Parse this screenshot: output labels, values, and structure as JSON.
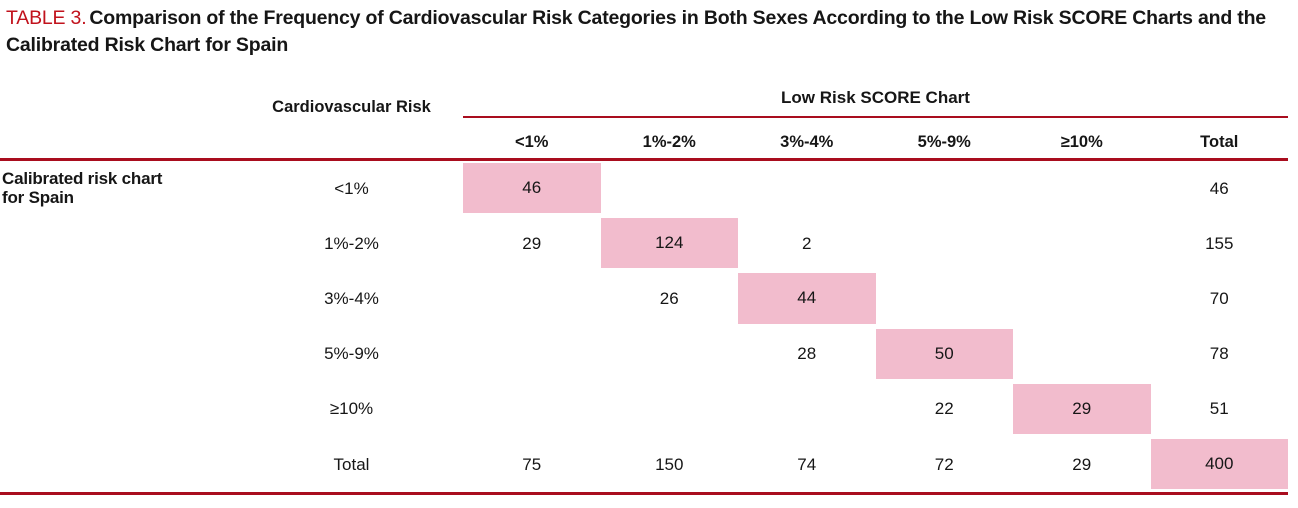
{
  "colors": {
    "title_red": "#c1121c",
    "rule_red": "#a90d1e",
    "highlight_pink": "#f2bccd"
  },
  "title": {
    "label": "TABLE 3.",
    "text": "Comparison of the Frequency of Cardiovascular Risk Categories in Both Sexes According to the Low Risk SCORE Charts and the Calibrated Risk Chart for Spain"
  },
  "table": {
    "stub_header": "Cardiovascular Risk",
    "group_header": "Low Risk SCORE Chart",
    "row_group_label": {
      "line1": "Calibrated risk chart",
      "line2": "for Spain"
    },
    "columns": [
      "<1%",
      "1%-2%",
      "3%-4%",
      "5%-9%",
      "≥10%",
      "Total"
    ],
    "rows": [
      {
        "category": "<1%",
        "values": [
          "46",
          "",
          "",
          "",
          "",
          "46"
        ],
        "highlight_col": 0
      },
      {
        "category": "1%-2%",
        "values": [
          "29",
          "124",
          "2",
          "",
          "",
          "155"
        ],
        "highlight_col": 1
      },
      {
        "category": "3%-4%",
        "values": [
          "",
          "26",
          "44",
          "",
          "",
          "70"
        ],
        "highlight_col": 2
      },
      {
        "category": "5%-9%",
        "values": [
          "",
          "",
          "28",
          "50",
          "",
          "78"
        ],
        "highlight_col": 3
      },
      {
        "category": "≥10%",
        "values": [
          "",
          "",
          "",
          "22",
          "29",
          "51"
        ],
        "highlight_col": 4
      },
      {
        "category": "Total",
        "values": [
          "75",
          "150",
          "74",
          "72",
          "29",
          "400"
        ],
        "highlight_col": 5
      }
    ]
  }
}
